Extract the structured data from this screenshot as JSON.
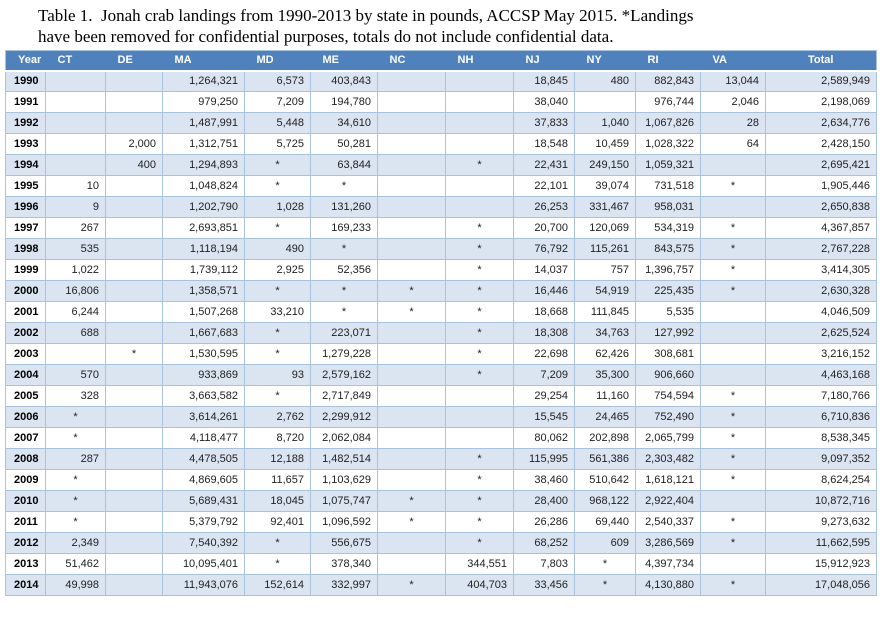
{
  "title": {
    "line1": "Table 1.  Jonah crab landings from 1990-2013 by state in pounds, ACCSP May 2015. *Landings",
    "line2": "have been removed for confidential purposes, totals do not include confidential data."
  },
  "colors": {
    "header_bg": "#4f81bd",
    "header_text": "#ffffff",
    "row_shaded": "#dbe5f1",
    "row_white": "#ffffff",
    "border": "#a9c2de",
    "text": "#212121"
  },
  "footnote_marker": "*",
  "table": {
    "columns": [
      "Year",
      "CT",
      "DE",
      "MA",
      "MD",
      "ME",
      "NC",
      "NH",
      "NJ",
      "NY",
      "RI",
      "VA",
      "Total"
    ],
    "rows": [
      {
        "year": "1990",
        "values": [
          "",
          "",
          "1,264,321",
          "6,573",
          "403,843",
          "",
          "",
          "18,845",
          "480",
          "882,843",
          "13,044",
          "2,589,949"
        ]
      },
      {
        "year": "1991",
        "values": [
          "",
          "",
          "979,250",
          "7,209",
          "194,780",
          "",
          "",
          "38,040",
          "",
          "976,744",
          "2,046",
          "2,198,069"
        ]
      },
      {
        "year": "1992",
        "values": [
          "",
          "",
          "1,487,991",
          "5,448",
          "34,610",
          "",
          "",
          "37,833",
          "1,040",
          "1,067,826",
          "28",
          "2,634,776"
        ]
      },
      {
        "year": "1993",
        "values": [
          "",
          "2,000",
          "1,312,751",
          "5,725",
          "50,281",
          "",
          "",
          "18,548",
          "10,459",
          "1,028,322",
          "64",
          "2,428,150"
        ]
      },
      {
        "year": "1994",
        "values": [
          "",
          "400",
          "1,294,893",
          "*",
          "63,844",
          "",
          "*",
          "22,431",
          "249,150",
          "1,059,321",
          "",
          "2,695,421"
        ]
      },
      {
        "year": "1995",
        "values": [
          "10",
          "",
          "1,048,824",
          "*",
          "*",
          "",
          "",
          "22,101",
          "39,074",
          "731,518",
          "*",
          "1,905,446"
        ]
      },
      {
        "year": "1996",
        "values": [
          "9",
          "",
          "1,202,790",
          "1,028",
          "131,260",
          "",
          "",
          "26,253",
          "331,467",
          "958,031",
          "",
          "2,650,838"
        ]
      },
      {
        "year": "1997",
        "values": [
          "267",
          "",
          "2,693,851",
          "*",
          "169,233",
          "",
          "*",
          "20,700",
          "120,069",
          "534,319",
          "*",
          "4,367,857"
        ]
      },
      {
        "year": "1998",
        "values": [
          "535",
          "",
          "1,118,194",
          "490",
          "*",
          "",
          "*",
          "76,792",
          "115,261",
          "843,575",
          "*",
          "2,767,228"
        ]
      },
      {
        "year": "1999",
        "values": [
          "1,022",
          "",
          "1,739,112",
          "2,925",
          "52,356",
          "",
          "*",
          "14,037",
          "757",
          "1,396,757",
          "*",
          "3,414,305"
        ]
      },
      {
        "year": "2000",
        "values": [
          "16,806",
          "",
          "1,358,571",
          "*",
          "*",
          "*",
          "*",
          "16,446",
          "54,919",
          "225,435",
          "*",
          "2,630,328"
        ]
      },
      {
        "year": "2001",
        "values": [
          "6,244",
          "",
          "1,507,268",
          "33,210",
          "*",
          "*",
          "*",
          "18,668",
          "111,845",
          "5,535",
          "",
          "4,046,509"
        ]
      },
      {
        "year": "2002",
        "values": [
          "688",
          "",
          "1,667,683",
          "*",
          "223,071",
          "",
          "*",
          "18,308",
          "34,763",
          "127,992",
          "",
          "2,625,524"
        ]
      },
      {
        "year": "2003",
        "values": [
          "",
          "*",
          "1,530,595",
          "*",
          "1,279,228",
          "",
          "*",
          "22,698",
          "62,426",
          "308,681",
          "",
          "3,216,152"
        ]
      },
      {
        "year": "2004",
        "values": [
          "570",
          "",
          "933,869",
          "93",
          "2,579,162",
          "",
          "*",
          "7,209",
          "35,300",
          "906,660",
          "",
          "4,463,168"
        ]
      },
      {
        "year": "2005",
        "values": [
          "328",
          "",
          "3,663,582",
          "*",
          "2,717,849",
          "",
          "",
          "29,254",
          "11,160",
          "754,594",
          "*",
          "7,180,766"
        ]
      },
      {
        "year": "2006",
        "values": [
          "*",
          "",
          "3,614,261",
          "2,762",
          "2,299,912",
          "",
          "",
          "15,545",
          "24,465",
          "752,490",
          "*",
          "6,710,836"
        ]
      },
      {
        "year": "2007",
        "values": [
          "*",
          "",
          "4,118,477",
          "8,720",
          "2,062,084",
          "",
          "",
          "80,062",
          "202,898",
          "2,065,799",
          "*",
          "8,538,345"
        ]
      },
      {
        "year": "2008",
        "values": [
          "287",
          "",
          "4,478,505",
          "12,188",
          "1,482,514",
          "",
          "*",
          "115,995",
          "561,386",
          "2,303,482",
          "*",
          "9,097,352"
        ]
      },
      {
        "year": "2009",
        "values": [
          "*",
          "",
          "4,869,605",
          "11,657",
          "1,103,629",
          "",
          "*",
          "38,460",
          "510,642",
          "1,618,121",
          "*",
          "8,624,254"
        ]
      },
      {
        "year": "2010",
        "values": [
          "*",
          "",
          "5,689,431",
          "18,045",
          "1,075,747",
          "*",
          "*",
          "28,400",
          "968,122",
          "2,922,404",
          "",
          "10,872,716"
        ]
      },
      {
        "year": "2011",
        "values": [
          "*",
          "",
          "5,379,792",
          "92,401",
          "1,096,592",
          "*",
          "*",
          "26,286",
          "69,440",
          "2,540,337",
          "*",
          "9,273,632"
        ]
      },
      {
        "year": "2012",
        "values": [
          "2,349",
          "",
          "7,540,392",
          "*",
          "556,675",
          "",
          "*",
          "68,252",
          "609",
          "3,286,569",
          "*",
          "11,662,595"
        ]
      },
      {
        "year": "2013",
        "values": [
          "51,462",
          "",
          "10,095,401",
          "*",
          "378,340",
          "",
          "344,551",
          "7,803",
          "*",
          "4,397,734",
          "",
          "15,912,923"
        ]
      },
      {
        "year": "2014",
        "values": [
          "49,998",
          "",
          "11,943,076",
          "152,614",
          "332,997",
          "*",
          "404,703",
          "33,456",
          "*",
          "4,130,880",
          "*",
          "17,048,056"
        ]
      }
    ]
  }
}
